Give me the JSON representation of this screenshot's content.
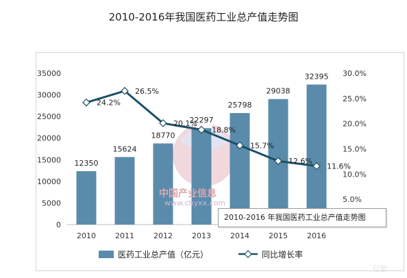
{
  "chart_data": {
    "type": "bar+line",
    "title": "2010-2016年我国医药工业总产值走势图",
    "categories": [
      "2010",
      "2011",
      "2012",
      "2013",
      "2014",
      "2015",
      "2016"
    ],
    "series": [
      {
        "name": "医药工业总产值（亿元）",
        "kind": "bar",
        "axis": "left",
        "color": "#5b8bab",
        "values": [
          12350,
          15624,
          18770,
          22297,
          25798,
          29038,
          32395
        ],
        "labels": [
          "12350",
          "15624",
          "18770",
          "22297",
          "25798",
          "29038",
          "32395"
        ]
      },
      {
        "name": "同比增长率",
        "kind": "line",
        "axis": "right",
        "color": "#1b4f66",
        "values": [
          24.2,
          26.5,
          20.1,
          18.8,
          15.7,
          12.6,
          11.6
        ],
        "labels": [
          "24.2%",
          "26.5%",
          "20.1%",
          "18.8%",
          "15.7%",
          "12.6%",
          "11.6%"
        ]
      }
    ],
    "y_left": {
      "ylim": [
        0,
        35000
      ],
      "ticks": [
        "0",
        "5000",
        "10000",
        "15000",
        "20000",
        "25000",
        "30000",
        "35000"
      ]
    },
    "y_right": {
      "ylim": [
        0,
        30
      ],
      "ticks": [
        "5.0%",
        "10.0%",
        "15.0%",
        "20.0%",
        "25.0%",
        "30.0%"
      ],
      "tick_values": [
        5,
        10,
        15,
        20,
        25,
        30
      ]
    },
    "grid": false,
    "legend": "bottom"
  },
  "tooltip": {
    "text": "2010-2016 年我国医药工业总产值走势图"
  },
  "watermark": {
    "line1": "中国产业信息",
    "line2": "www.chyxx.com",
    "corner": "亿欧"
  }
}
